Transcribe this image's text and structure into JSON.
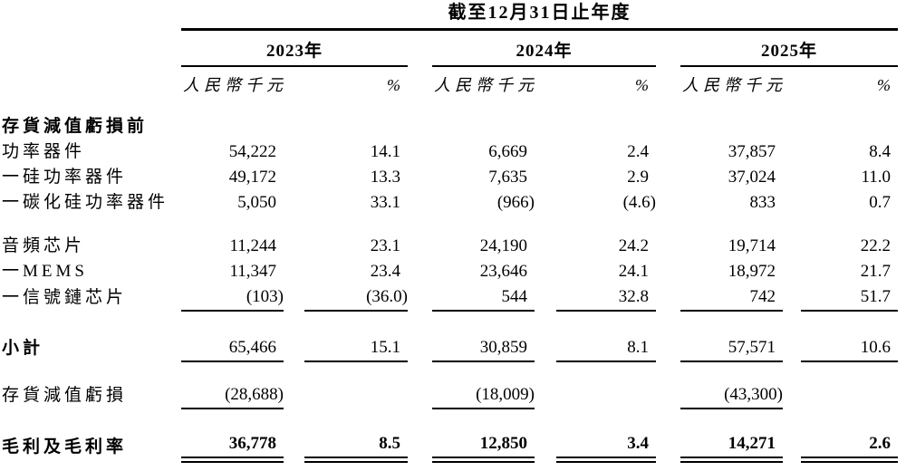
{
  "table": {
    "title": "截至12月31日止年度",
    "year_groups": [
      "2023年",
      "2024年",
      "2025年"
    ],
    "currency_label": "人民幣千元",
    "percent_label": "%",
    "rows": [
      {
        "type": "section",
        "label": "存貨減值虧損前",
        "values": [
          "",
          "",
          "",
          "",
          "",
          ""
        ],
        "rule": "none"
      },
      {
        "type": "item",
        "label": "功率器件",
        "values": [
          "54,222",
          "14.1",
          "6,669",
          "2.4",
          "37,857",
          "8.4"
        ],
        "rule": "none"
      },
      {
        "type": "item",
        "label": "一硅功率器件",
        "values": [
          "49,172",
          "13.3",
          "7,635",
          "2.9",
          "37,024",
          "11.0"
        ],
        "rule": "none"
      },
      {
        "type": "item",
        "label": "一碳化硅功率器件",
        "values": [
          "5,050",
          "33.1",
          "(966)",
          "(4.6)",
          "833",
          "0.7"
        ],
        "rule": "none"
      },
      {
        "type": "spacer",
        "h": 20
      },
      {
        "type": "item",
        "label": "音頻芯片",
        "values": [
          "11,244",
          "23.1",
          "24,190",
          "24.2",
          "19,714",
          "22.2"
        ],
        "rule": "none"
      },
      {
        "type": "item",
        "label": "一MEMS",
        "values": [
          "11,347",
          "23.4",
          "23,646",
          "24.1",
          "18,972",
          "21.7"
        ],
        "rule": "none"
      },
      {
        "type": "item",
        "label": "一信號鏈芯片",
        "values": [
          "(103)",
          "(36.0)",
          "544",
          "32.8",
          "742",
          "51.7"
        ],
        "rule": "all"
      },
      {
        "type": "spacer",
        "h": 26
      },
      {
        "type": "subtotal",
        "label": "小計",
        "values": [
          "65,466",
          "15.1",
          "30,859",
          "8.1",
          "57,571",
          "10.6"
        ],
        "rule": "all"
      },
      {
        "type": "spacer",
        "h": 22
      },
      {
        "type": "item",
        "label": "存貨減值虧損",
        "values": [
          "(28,688)",
          "",
          "(18,009)",
          "",
          "(43,300)",
          ""
        ],
        "rule": "nums"
      },
      {
        "type": "spacer",
        "h": 24
      },
      {
        "type": "total",
        "label": "毛利及毛利率",
        "values": [
          "36,778",
          "8.5",
          "12,850",
          "3.4",
          "14,271",
          "2.6"
        ],
        "rule": "double"
      }
    ]
  }
}
